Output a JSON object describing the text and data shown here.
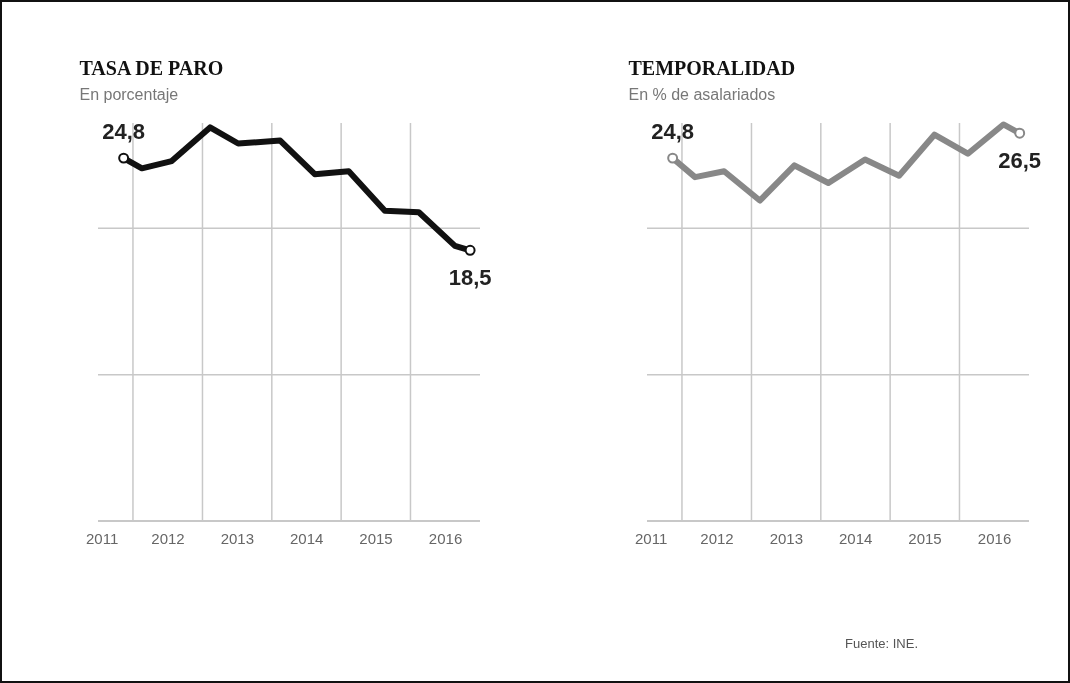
{
  "chart_data": [
    {
      "type": "line",
      "title": "TASA DE PARO",
      "subtitle": "En porcentaje",
      "series": [
        {
          "color": "#111111",
          "x": [
            "2011-11-13",
            "2012-02-17",
            "2012-07-23",
            "2013-02-10",
            "2013-07-08",
            "2014-02-14",
            "2014-08-15",
            "2015-02-10",
            "2015-08-19",
            "2016-02-14",
            "2016-08-22",
            "2016-11-10"
          ],
          "values": [
            24.8,
            24.1,
            24.6,
            26.9,
            25.8,
            26.0,
            23.7,
            23.9,
            21.2,
            21.1,
            18.8,
            18.5
          ],
          "value_labels": [
            "24,8",
            null,
            null,
            null,
            null,
            null,
            null,
            null,
            null,
            null,
            null,
            "18,5"
          ]
        }
      ],
      "xlim": [
        "2011-07-01",
        "2017-01-01"
      ],
      "ylim": [
        0,
        27.2
      ],
      "xticks": [
        {
          "value": "2011-07-20",
          "label": "2011"
        },
        {
          "value": "2012-01-01",
          "label": null
        },
        {
          "value": "2012-07-01",
          "label": "2012"
        },
        {
          "value": "2013-01-01",
          "label": null
        },
        {
          "value": "2013-07-01",
          "label": "2013"
        },
        {
          "value": "2014-01-01",
          "label": null
        },
        {
          "value": "2014-07-01",
          "label": "2014"
        },
        {
          "value": "2015-01-01",
          "label": null
        },
        {
          "value": "2015-07-01",
          "label": "2015"
        },
        {
          "value": "2016-01-01",
          "label": null
        },
        {
          "value": "2016-07-01",
          "label": "2016"
        }
      ],
      "yticks": [
        {
          "value": 0,
          "label": null
        },
        {
          "value": 10,
          "label": null
        },
        {
          "value": 20,
          "label": null
        }
      ],
      "tick_labels": "x",
      "grid": true
    },
    {
      "type": "line",
      "title": "TEMPORALIDAD",
      "subtitle": "En % de asalariados",
      "series": [
        {
          "color": "#888888",
          "x": [
            "2011-11-13",
            "2012-03-10",
            "2012-08-10",
            "2013-02-14",
            "2013-08-15",
            "2014-02-10",
            "2014-08-22",
            "2015-02-17",
            "2015-08-22",
            "2016-02-14",
            "2016-08-19",
            "2016-11-13"
          ],
          "values": [
            24.8,
            23.5,
            23.9,
            21.9,
            24.3,
            23.1,
            24.7,
            23.6,
            26.4,
            25.1,
            27.1,
            26.5
          ],
          "value_labels": [
            "24,8",
            null,
            null,
            null,
            null,
            null,
            null,
            null,
            null,
            null,
            null,
            "26,5"
          ]
        }
      ],
      "xlim": [
        "2011-07-01",
        "2017-01-01"
      ],
      "ylim": [
        0,
        27.2
      ],
      "xticks": [
        {
          "value": "2011-07-20",
          "label": "2011"
        },
        {
          "value": "2012-01-01",
          "label": null
        },
        {
          "value": "2012-07-01",
          "label": "2012"
        },
        {
          "value": "2013-01-01",
          "label": null
        },
        {
          "value": "2013-07-01",
          "label": "2013"
        },
        {
          "value": "2014-01-01",
          "label": null
        },
        {
          "value": "2014-07-01",
          "label": "2014"
        },
        {
          "value": "2015-01-01",
          "label": null
        },
        {
          "value": "2015-07-01",
          "label": "2015"
        },
        {
          "value": "2016-01-01",
          "label": null
        },
        {
          "value": "2016-07-01",
          "label": "2016"
        }
      ],
      "yticks": [
        {
          "value": 0,
          "label": null
        },
        {
          "value": 10,
          "label": null
        },
        {
          "value": 20,
          "label": null
        }
      ],
      "tick_labels": "x",
      "grid": true,
      "annotations": [
        "Fuente: INE."
      ]
    }
  ]
}
